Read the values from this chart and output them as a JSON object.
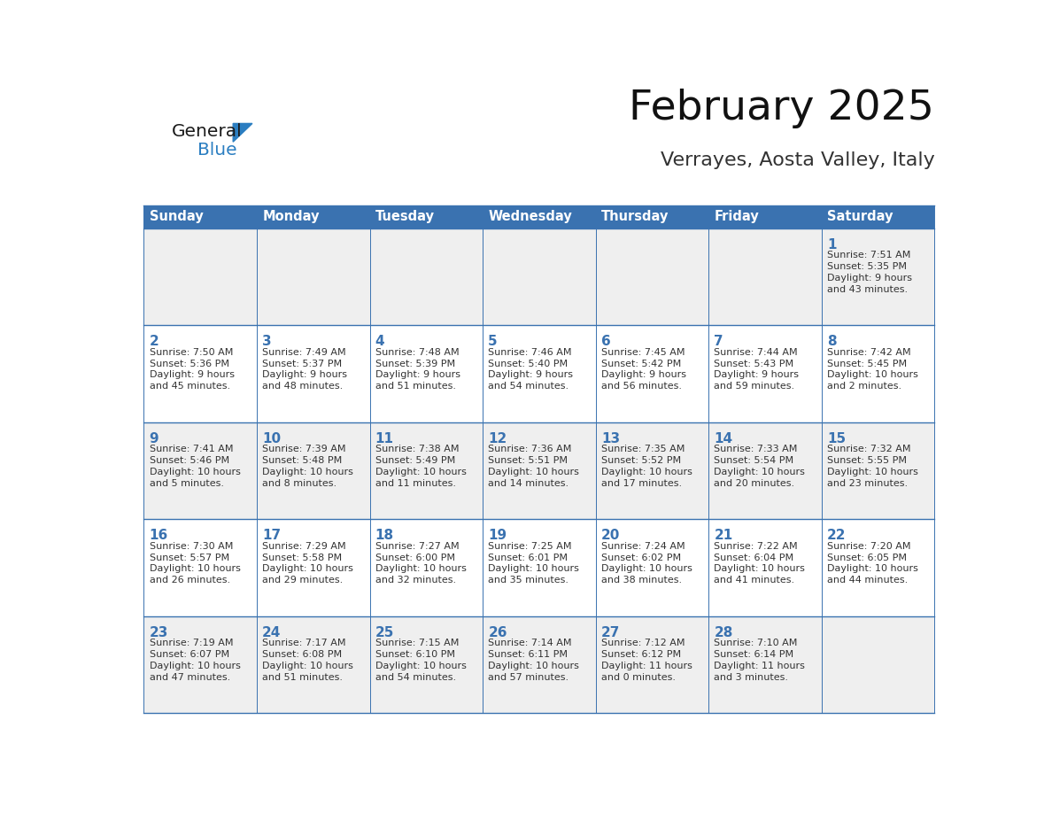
{
  "title": "February 2025",
  "subtitle": "Verrayes, Aosta Valley, Italy",
  "header_bg": "#3A72B0",
  "header_text_color": "#FFFFFF",
  "cell_bg_week0": "#EFEFEF",
  "cell_bg_week1": "#FFFFFF",
  "cell_bg_week2": "#EFEFEF",
  "cell_bg_week3": "#FFFFFF",
  "cell_bg_week4": "#EFEFEF",
  "day_number_color": "#3A72B0",
  "cell_text_color": "#333333",
  "grid_line_color": "#3A72B0",
  "days_of_week": [
    "Sunday",
    "Monday",
    "Tuesday",
    "Wednesday",
    "Thursday",
    "Friday",
    "Saturday"
  ],
  "weeks": [
    [
      {
        "day": null,
        "sunrise": null,
        "sunset": null,
        "daylight_line1": null,
        "daylight_line2": null
      },
      {
        "day": null,
        "sunrise": null,
        "sunset": null,
        "daylight_line1": null,
        "daylight_line2": null
      },
      {
        "day": null,
        "sunrise": null,
        "sunset": null,
        "daylight_line1": null,
        "daylight_line2": null
      },
      {
        "day": null,
        "sunrise": null,
        "sunset": null,
        "daylight_line1": null,
        "daylight_line2": null
      },
      {
        "day": null,
        "sunrise": null,
        "sunset": null,
        "daylight_line1": null,
        "daylight_line2": null
      },
      {
        "day": null,
        "sunrise": null,
        "sunset": null,
        "daylight_line1": null,
        "daylight_line2": null
      },
      {
        "day": "1",
        "sunrise": "Sunrise: 7:51 AM",
        "sunset": "Sunset: 5:35 PM",
        "daylight_line1": "Daylight: 9 hours",
        "daylight_line2": "and 43 minutes."
      }
    ],
    [
      {
        "day": "2",
        "sunrise": "Sunrise: 7:50 AM",
        "sunset": "Sunset: 5:36 PM",
        "daylight_line1": "Daylight: 9 hours",
        "daylight_line2": "and 45 minutes."
      },
      {
        "day": "3",
        "sunrise": "Sunrise: 7:49 AM",
        "sunset": "Sunset: 5:37 PM",
        "daylight_line1": "Daylight: 9 hours",
        "daylight_line2": "and 48 minutes."
      },
      {
        "day": "4",
        "sunrise": "Sunrise: 7:48 AM",
        "sunset": "Sunset: 5:39 PM",
        "daylight_line1": "Daylight: 9 hours",
        "daylight_line2": "and 51 minutes."
      },
      {
        "day": "5",
        "sunrise": "Sunrise: 7:46 AM",
        "sunset": "Sunset: 5:40 PM",
        "daylight_line1": "Daylight: 9 hours",
        "daylight_line2": "and 54 minutes."
      },
      {
        "day": "6",
        "sunrise": "Sunrise: 7:45 AM",
        "sunset": "Sunset: 5:42 PM",
        "daylight_line1": "Daylight: 9 hours",
        "daylight_line2": "and 56 minutes."
      },
      {
        "day": "7",
        "sunrise": "Sunrise: 7:44 AM",
        "sunset": "Sunset: 5:43 PM",
        "daylight_line1": "Daylight: 9 hours",
        "daylight_line2": "and 59 minutes."
      },
      {
        "day": "8",
        "sunrise": "Sunrise: 7:42 AM",
        "sunset": "Sunset: 5:45 PM",
        "daylight_line1": "Daylight: 10 hours",
        "daylight_line2": "and 2 minutes."
      }
    ],
    [
      {
        "day": "9",
        "sunrise": "Sunrise: 7:41 AM",
        "sunset": "Sunset: 5:46 PM",
        "daylight_line1": "Daylight: 10 hours",
        "daylight_line2": "and 5 minutes."
      },
      {
        "day": "10",
        "sunrise": "Sunrise: 7:39 AM",
        "sunset": "Sunset: 5:48 PM",
        "daylight_line1": "Daylight: 10 hours",
        "daylight_line2": "and 8 minutes."
      },
      {
        "day": "11",
        "sunrise": "Sunrise: 7:38 AM",
        "sunset": "Sunset: 5:49 PM",
        "daylight_line1": "Daylight: 10 hours",
        "daylight_line2": "and 11 minutes."
      },
      {
        "day": "12",
        "sunrise": "Sunrise: 7:36 AM",
        "sunset": "Sunset: 5:51 PM",
        "daylight_line1": "Daylight: 10 hours",
        "daylight_line2": "and 14 minutes."
      },
      {
        "day": "13",
        "sunrise": "Sunrise: 7:35 AM",
        "sunset": "Sunset: 5:52 PM",
        "daylight_line1": "Daylight: 10 hours",
        "daylight_line2": "and 17 minutes."
      },
      {
        "day": "14",
        "sunrise": "Sunrise: 7:33 AM",
        "sunset": "Sunset: 5:54 PM",
        "daylight_line1": "Daylight: 10 hours",
        "daylight_line2": "and 20 minutes."
      },
      {
        "day": "15",
        "sunrise": "Sunrise: 7:32 AM",
        "sunset": "Sunset: 5:55 PM",
        "daylight_line1": "Daylight: 10 hours",
        "daylight_line2": "and 23 minutes."
      }
    ],
    [
      {
        "day": "16",
        "sunrise": "Sunrise: 7:30 AM",
        "sunset": "Sunset: 5:57 PM",
        "daylight_line1": "Daylight: 10 hours",
        "daylight_line2": "and 26 minutes."
      },
      {
        "day": "17",
        "sunrise": "Sunrise: 7:29 AM",
        "sunset": "Sunset: 5:58 PM",
        "daylight_line1": "Daylight: 10 hours",
        "daylight_line2": "and 29 minutes."
      },
      {
        "day": "18",
        "sunrise": "Sunrise: 7:27 AM",
        "sunset": "Sunset: 6:00 PM",
        "daylight_line1": "Daylight: 10 hours",
        "daylight_line2": "and 32 minutes."
      },
      {
        "day": "19",
        "sunrise": "Sunrise: 7:25 AM",
        "sunset": "Sunset: 6:01 PM",
        "daylight_line1": "Daylight: 10 hours",
        "daylight_line2": "and 35 minutes."
      },
      {
        "day": "20",
        "sunrise": "Sunrise: 7:24 AM",
        "sunset": "Sunset: 6:02 PM",
        "daylight_line1": "Daylight: 10 hours",
        "daylight_line2": "and 38 minutes."
      },
      {
        "day": "21",
        "sunrise": "Sunrise: 7:22 AM",
        "sunset": "Sunset: 6:04 PM",
        "daylight_line1": "Daylight: 10 hours",
        "daylight_line2": "and 41 minutes."
      },
      {
        "day": "22",
        "sunrise": "Sunrise: 7:20 AM",
        "sunset": "Sunset: 6:05 PM",
        "daylight_line1": "Daylight: 10 hours",
        "daylight_line2": "and 44 minutes."
      }
    ],
    [
      {
        "day": "23",
        "sunrise": "Sunrise: 7:19 AM",
        "sunset": "Sunset: 6:07 PM",
        "daylight_line1": "Daylight: 10 hours",
        "daylight_line2": "and 47 minutes."
      },
      {
        "day": "24",
        "sunrise": "Sunrise: 7:17 AM",
        "sunset": "Sunset: 6:08 PM",
        "daylight_line1": "Daylight: 10 hours",
        "daylight_line2": "and 51 minutes."
      },
      {
        "day": "25",
        "sunrise": "Sunrise: 7:15 AM",
        "sunset": "Sunset: 6:10 PM",
        "daylight_line1": "Daylight: 10 hours",
        "daylight_line2": "and 54 minutes."
      },
      {
        "day": "26",
        "sunrise": "Sunrise: 7:14 AM",
        "sunset": "Sunset: 6:11 PM",
        "daylight_line1": "Daylight: 10 hours",
        "daylight_line2": "and 57 minutes."
      },
      {
        "day": "27",
        "sunrise": "Sunrise: 7:12 AM",
        "sunset": "Sunset: 6:12 PM",
        "daylight_line1": "Daylight: 11 hours",
        "daylight_line2": "and 0 minutes."
      },
      {
        "day": "28",
        "sunrise": "Sunrise: 7:10 AM",
        "sunset": "Sunset: 6:14 PM",
        "daylight_line1": "Daylight: 11 hours",
        "daylight_line2": "and 3 minutes."
      },
      {
        "day": null,
        "sunrise": null,
        "sunset": null,
        "daylight_line1": null,
        "daylight_line2": null
      }
    ]
  ],
  "logo_text_general": "General",
  "logo_text_blue": "Blue",
  "logo_color_general": "#1a1a1a",
  "logo_color_blue": "#2B7EC1",
  "logo_triangle_color": "#2B7EC1",
  "cell_bg_colors": [
    "#EFEFEF",
    "#FFFFFF",
    "#EFEFEF",
    "#FFFFFF",
    "#EFEFEF"
  ]
}
